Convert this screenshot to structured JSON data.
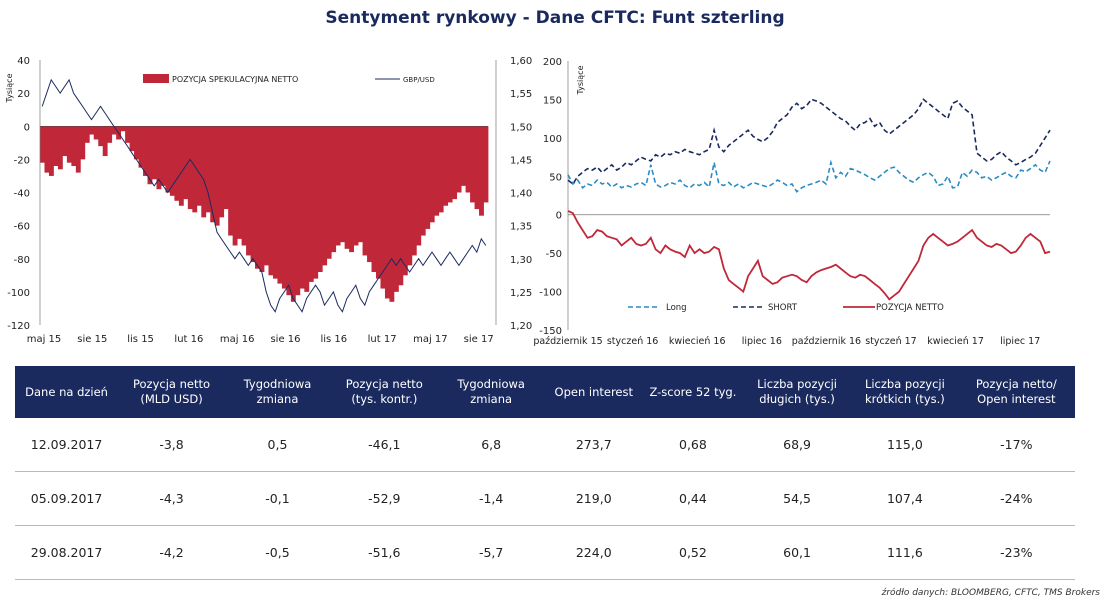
{
  "title": "Sentyment rynkowy - Dane CFTC:  Funt szterling",
  "source": "źródło danych: BLOOMBERG, CFTC, TMS Brokers",
  "colors": {
    "navy": "#1b2a5e",
    "bar_red": "#c0283a",
    "long": "#2b8cc4",
    "short": "#1b2a5e",
    "net": "#c0283a"
  },
  "chart_data": [
    {
      "type": "bar",
      "ylabel": "Tysiące",
      "yticks_left": [
        "40",
        "20",
        "0",
        "-20",
        "-40",
        "-60",
        "-80",
        "-100",
        "-120"
      ],
      "yticks_right": [
        "1,60",
        "1,55",
        "1,50",
        "1,45",
        "1,40",
        "1,35",
        "1,30",
        "1,25",
        "1,20"
      ],
      "ylim_left": [
        -120,
        40
      ],
      "ylim_right": [
        1.2,
        1.6
      ],
      "xticks": [
        "maj 15",
        "sie 15",
        "lis 15",
        "lut 16",
        "maj 16",
        "sie 16",
        "lis 16",
        "lut 17",
        "maj 17",
        "sie 17"
      ],
      "legend": [
        "POZYCJA SPEKULACYJNA NETTO",
        "GBP/USD"
      ],
      "series": [
        {
          "name": "POZYCJA SPEKULACYJNA NETTO",
          "axis": "left",
          "values": [
            -22,
            -28,
            -30,
            -24,
            -26,
            -18,
            -22,
            -24,
            -28,
            -20,
            -10,
            -5,
            -8,
            -12,
            -18,
            -10,
            -5,
            -8,
            -3,
            -10,
            -15,
            -20,
            -25,
            -30,
            -35,
            -32,
            -38,
            -36,
            -40,
            -42,
            -45,
            -48,
            -44,
            -50,
            -52,
            -48,
            -55,
            -52,
            -58,
            -60,
            -55,
            -50,
            -66,
            -72,
            -68,
            -72,
            -78,
            -82,
            -86,
            -88,
            -84,
            -90,
            -92,
            -95,
            -98,
            -102,
            -106,
            -102,
            -98,
            -100,
            -94,
            -92,
            -88,
            -84,
            -80,
            -76,
            -72,
            -70,
            -74,
            -76,
            -72,
            -70,
            -78,
            -82,
            -88,
            -92,
            -98,
            -104,
            -106,
            -100,
            -96,
            -90,
            -84,
            -78,
            -72,
            -66,
            -62,
            -58,
            -54,
            -52,
            -48,
            -46,
            -44,
            -40,
            -36,
            -40,
            -46,
            -50,
            -54,
            -46
          ]
        },
        {
          "name": "GBP/USD",
          "axis": "right",
          "values": [
            1.53,
            1.55,
            1.57,
            1.56,
            1.55,
            1.56,
            1.57,
            1.55,
            1.54,
            1.53,
            1.52,
            1.51,
            1.52,
            1.53,
            1.52,
            1.51,
            1.5,
            1.49,
            1.48,
            1.47,
            1.46,
            1.45,
            1.44,
            1.43,
            1.42,
            1.41,
            1.42,
            1.41,
            1.4,
            1.41,
            1.42,
            1.43,
            1.44,
            1.45,
            1.44,
            1.43,
            1.42,
            1.4,
            1.37,
            1.34,
            1.33,
            1.32,
            1.31,
            1.3,
            1.31,
            1.3,
            1.29,
            1.3,
            1.29,
            1.28,
            1.25,
            1.23,
            1.22,
            1.24,
            1.25,
            1.26,
            1.24,
            1.23,
            1.22,
            1.24,
            1.25,
            1.26,
            1.25,
            1.23,
            1.24,
            1.25,
            1.23,
            1.22,
            1.24,
            1.25,
            1.26,
            1.24,
            1.23,
            1.25,
            1.26,
            1.27,
            1.28,
            1.29,
            1.3,
            1.29,
            1.3,
            1.29,
            1.28,
            1.29,
            1.3,
            1.29,
            1.3,
            1.31,
            1.3,
            1.29,
            1.3,
            1.31,
            1.3,
            1.29,
            1.3,
            1.31,
            1.32,
            1.31,
            1.33,
            1.32
          ]
        }
      ]
    },
    {
      "type": "line",
      "ylabel": "Tysiące",
      "yticks": [
        "200",
        "150",
        "100",
        "50",
        "0",
        "-50",
        "-100",
        "-150"
      ],
      "ylim": [
        -150,
        200
      ],
      "xticks": [
        "październik 15",
        "styczeń 16",
        "kwiecień 16",
        "lipiec 16",
        "październik 16",
        "styczeń 17",
        "kwiecień 17",
        "lipiec 17"
      ],
      "legend": [
        "Long",
        "SHORT",
        "POZYCJA NETTO"
      ],
      "series": [
        {
          "name": "Long",
          "values": [
            52,
            40,
            45,
            35,
            40,
            38,
            45,
            40,
            42,
            36,
            40,
            35,
            38,
            36,
            40,
            42,
            38,
            65,
            40,
            36,
            38,
            42,
            40,
            45,
            38,
            35,
            40,
            38,
            42,
            36,
            68,
            40,
            38,
            42,
            36,
            40,
            35,
            38,
            42,
            40,
            38,
            36,
            40,
            45,
            42,
            38,
            40,
            30,
            35,
            38,
            40,
            42,
            45,
            40,
            68,
            48,
            55,
            50,
            60,
            58,
            55,
            52,
            48,
            45,
            50,
            55,
            60,
            62,
            55,
            50,
            45,
            42,
            48,
            52,
            55,
            50,
            38,
            40,
            50,
            35,
            36,
            55,
            50,
            58,
            55,
            48,
            50,
            45,
            48,
            52,
            55,
            50,
            48,
            58,
            56,
            60,
            65,
            58,
            55,
            70
          ]
        },
        {
          "name": "SHORT",
          "values": [
            45,
            40,
            50,
            55,
            60,
            58,
            62,
            55,
            60,
            65,
            58,
            62,
            68,
            65,
            70,
            75,
            72,
            70,
            78,
            75,
            80,
            78,
            82,
            80,
            85,
            82,
            80,
            78,
            82,
            85,
            110,
            88,
            82,
            90,
            95,
            100,
            105,
            110,
            102,
            98,
            95,
            100,
            108,
            120,
            125,
            130,
            140,
            145,
            138,
            142,
            150,
            148,
            145,
            140,
            135,
            130,
            125,
            122,
            115,
            110,
            118,
            120,
            125,
            115,
            120,
            110,
            105,
            110,
            115,
            120,
            125,
            130,
            138,
            150,
            145,
            140,
            135,
            130,
            125,
            145,
            148,
            140,
            135,
            130,
            80,
            75,
            70,
            72,
            78,
            82,
            75,
            70,
            65,
            68,
            72,
            75,
            80,
            90,
            100,
            110
          ]
        },
        {
          "name": "POZYCJA NETTO",
          "values": [
            5,
            2,
            -10,
            -20,
            -30,
            -28,
            -20,
            -22,
            -28,
            -30,
            -32,
            -40,
            -35,
            -30,
            -38,
            -40,
            -38,
            -30,
            -45,
            -50,
            -40,
            -45,
            -48,
            -50,
            -55,
            -40,
            -50,
            -45,
            -50,
            -48,
            -42,
            -45,
            -70,
            -85,
            -90,
            -95,
            -100,
            -80,
            -70,
            -60,
            -80,
            -85,
            -90,
            -88,
            -82,
            -80,
            -78,
            -80,
            -85,
            -88,
            -80,
            -75,
            -72,
            -70,
            -68,
            -65,
            -70,
            -75,
            -80,
            -82,
            -78,
            -80,
            -85,
            -90,
            -95,
            -102,
            -110,
            -105,
            -100,
            -90,
            -80,
            -70,
            -60,
            -40,
            -30,
            -25,
            -30,
            -35,
            -40,
            -38,
            -35,
            -30,
            -25,
            -20,
            -30,
            -35,
            -40,
            -42,
            -38,
            -40,
            -45,
            -50,
            -48,
            -40,
            -30,
            -25,
            -30,
            -35,
            -50,
            -48
          ]
        }
      ]
    }
  ],
  "table": {
    "headers": [
      "Dane na dzień",
      "Pozycja netto (MLD USD)",
      "Tygodniowa zmiana",
      "Pozycja netto (tys. kontr.)",
      "Tygodniowa zmiana",
      "Open interest",
      "Z-score 52 tyg.",
      "Liczba pozycji długich (tys.)",
      "Liczba pozycji krótkich (tys.)",
      "Pozycja netto/ Open interest"
    ],
    "rows": [
      [
        "12.09.2017",
        "-3,8",
        "0,5",
        "-46,1",
        "6,8",
        "273,7",
        "0,68",
        "68,9",
        "115,0",
        "-17%"
      ],
      [
        "05.09.2017",
        "-4,3",
        "-0,1",
        "-52,9",
        "-1,4",
        "219,0",
        "0,44",
        "54,5",
        "107,4",
        "-24%"
      ],
      [
        "29.08.2017",
        "-4,2",
        "-0,5",
        "-51,6",
        "-5,7",
        "224,0",
        "0,52",
        "60,1",
        "111,6",
        "-23%"
      ]
    ]
  }
}
